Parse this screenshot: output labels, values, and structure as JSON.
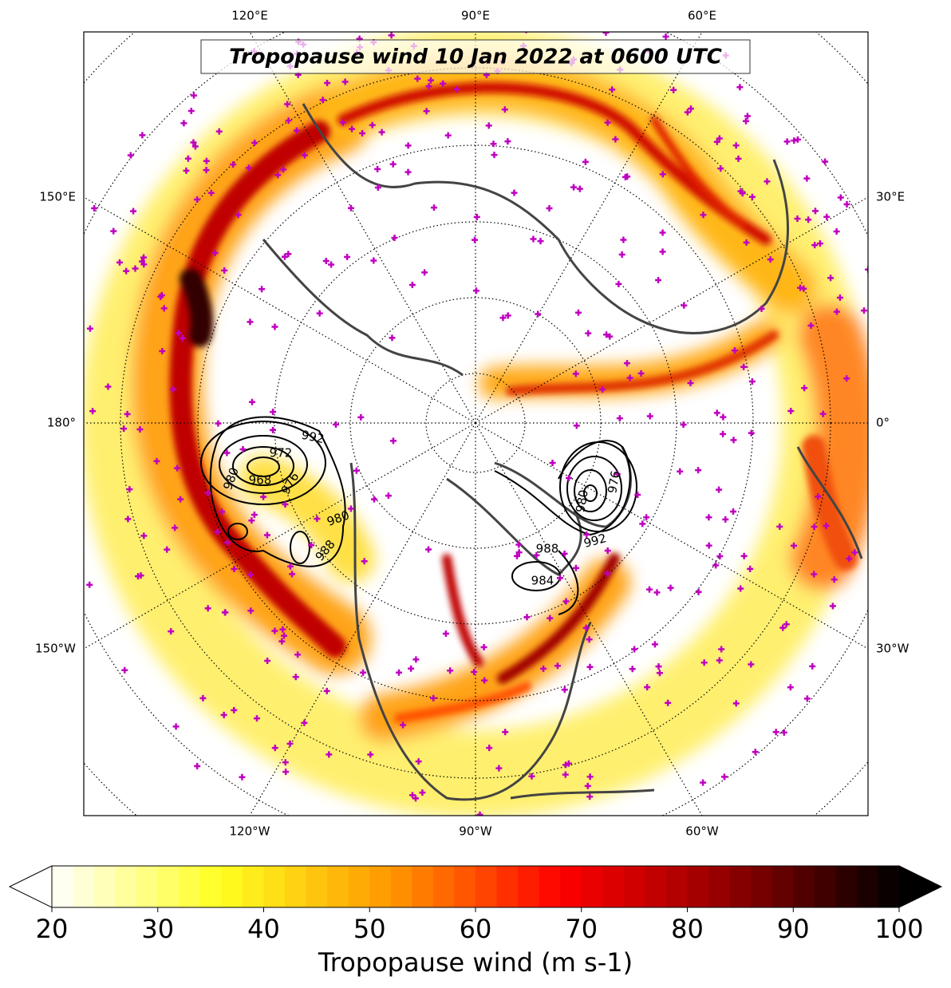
{
  "title": "Tropopause wind 10 Jan 2022 at 0600 UTC",
  "lon_labels": {
    "top": [
      "120°E",
      "90°E",
      "60°E"
    ],
    "left": [
      "150°E",
      "180°",
      "150°W"
    ],
    "right": [
      "30°E",
      "0°",
      "30°W"
    ],
    "bottom": [
      "120°W",
      "90°W",
      "60°W"
    ]
  },
  "contour_labels": [
    992,
    972,
    968,
    976,
    980,
    980,
    988,
    992,
    988,
    984,
    980,
    976
  ],
  "colorbar": {
    "label": "Tropopause wind (m s-1)",
    "lim": [
      20,
      100
    ],
    "ticks": [
      20,
      30,
      40,
      50,
      60,
      70,
      80,
      90,
      100
    ],
    "colors": [
      "#ffffff",
      "#ffff20",
      "#ff9800",
      "#ff0000",
      "#900000",
      "#000000"
    ],
    "extend": "both"
  }
}
